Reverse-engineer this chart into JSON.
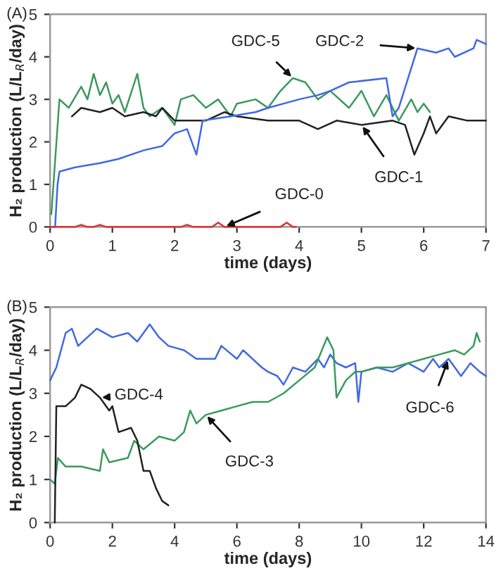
{
  "chart_data": [
    {
      "type": "line",
      "title": "(A)",
      "xlabel": "time (days)",
      "ylabel": "H₂ production (L/L$_{R}$/day)",
      "xlim": [
        0,
        7
      ],
      "xticks": [
        0,
        1,
        2,
        3,
        4,
        5,
        6,
        7
      ],
      "ylim": [
        0,
        5
      ],
      "yticks": [
        0,
        1,
        2,
        3,
        4,
        5
      ],
      "grid": false,
      "legend": false,
      "marker": "none",
      "line_style": "solid",
      "series": [
        {
          "name": "GDC-5",
          "color": "#3a9a5c",
          "x": [
            0.02,
            0.15,
            0.3,
            0.5,
            0.6,
            0.7,
            0.8,
            0.9,
            1.0,
            1.1,
            1.2,
            1.4,
            1.5,
            1.6,
            1.8,
            2.0,
            2.1,
            2.3,
            2.5,
            2.7,
            2.9,
            3.0,
            3.3,
            3.5,
            3.7,
            3.9,
            4.1,
            4.3,
            4.5,
            4.8,
            5.0,
            5.2,
            5.4,
            5.6,
            5.8,
            5.9,
            6.0,
            6.1
          ],
          "values": [
            0.3,
            3.0,
            2.8,
            3.3,
            3.0,
            3.6,
            3.1,
            3.4,
            2.9,
            3.1,
            2.7,
            3.6,
            2.8,
            2.6,
            2.8,
            2.4,
            3.0,
            3.1,
            2.8,
            3.0,
            2.6,
            2.9,
            3.0,
            2.8,
            3.2,
            3.5,
            3.4,
            3.0,
            3.2,
            2.8,
            3.2,
            2.6,
            3.1,
            2.5,
            3.0,
            2.7,
            2.9,
            2.7
          ]
        },
        {
          "name": "GDC-1",
          "color": "#222222",
          "x": [
            0.35,
            0.5,
            0.8,
            1.0,
            1.2,
            1.5,
            1.7,
            1.8,
            2.0,
            2.5,
            2.8,
            3.0,
            3.5,
            4.0,
            4.3,
            4.6,
            5.0,
            5.5,
            5.7,
            5.85,
            6.0,
            6.1,
            6.2,
            6.4,
            6.7,
            7.0
          ],
          "values": [
            2.6,
            2.8,
            2.7,
            2.8,
            2.6,
            2.7,
            2.6,
            2.8,
            2.5,
            2.5,
            2.7,
            2.6,
            2.5,
            2.5,
            2.3,
            2.5,
            2.4,
            2.5,
            2.4,
            1.7,
            2.2,
            2.6,
            2.2,
            2.6,
            2.5,
            2.5
          ]
        },
        {
          "name": "GDC-2",
          "color": "#4169e1",
          "x": [
            0.0,
            0.08,
            0.12,
            0.15,
            0.4,
            0.8,
            1.1,
            1.5,
            1.8,
            2.0,
            2.2,
            2.35,
            2.45,
            2.9,
            3.3,
            3.5,
            4.0,
            4.3,
            4.5,
            4.8,
            5.4,
            5.5,
            5.6,
            5.75,
            5.9,
            6.2,
            6.4,
            6.5,
            6.8,
            6.85,
            7.0
          ],
          "values": [
            0,
            0,
            1.0,
            1.3,
            1.4,
            1.5,
            1.6,
            1.8,
            1.9,
            2.2,
            2.3,
            1.7,
            2.5,
            2.6,
            2.7,
            2.8,
            3.0,
            3.1,
            3.2,
            3.4,
            3.5,
            2.6,
            2.8,
            3.5,
            4.2,
            4.1,
            4.2,
            4.0,
            4.2,
            4.4,
            4.3
          ]
        },
        {
          "name": "GDC-0",
          "color": "#e03030",
          "x": [
            0.0,
            0.4,
            0.5,
            0.6,
            0.7,
            0.8,
            0.9,
            2.1,
            2.2,
            2.3,
            2.6,
            2.7,
            2.8,
            3.7,
            3.8,
            3.9,
            3.95
          ],
          "values": [
            0,
            0,
            0.05,
            0,
            0,
            0.05,
            0,
            0,
            0.05,
            0,
            0,
            0.1,
            0,
            0,
            0.1,
            0,
            0
          ]
        }
      ]
    },
    {
      "type": "line",
      "title": "(B)",
      "xlabel": "time (days)",
      "ylabel": "H₂ production (L/L$_{R}$/day)",
      "xlim": [
        0,
        14
      ],
      "xticks": [
        0,
        2,
        4,
        6,
        8,
        10,
        12,
        14
      ],
      "ylim": [
        0,
        5
      ],
      "yticks": [
        0,
        1,
        2,
        3,
        4,
        5
      ],
      "grid": false,
      "legend": false,
      "marker": "none",
      "line_style": "solid",
      "series": [
        {
          "name": "GDC-6",
          "color": "#4169e1",
          "x": [
            0,
            0.2,
            0.5,
            0.7,
            0.9,
            1.2,
            1.5,
            2.0,
            2.5,
            2.8,
            3.2,
            3.5,
            3.8,
            4.3,
            4.7,
            5.3,
            5.5,
            6.0,
            6.2,
            6.8,
            7.0,
            7.3,
            7.5,
            7.8,
            8.2,
            8.6,
            8.8,
            9.0,
            9.2,
            9.5,
            9.8,
            9.9,
            10.0,
            10.5,
            11.0,
            11.5,
            12.0,
            12.3,
            12.5,
            12.8,
            13.2,
            13.5,
            13.8,
            14.0
          ],
          "values": [
            3.3,
            3.6,
            4.4,
            4.5,
            4.1,
            4.3,
            4.5,
            4.3,
            4.4,
            4.2,
            4.6,
            4.3,
            4.1,
            4.0,
            3.8,
            3.8,
            4.1,
            3.8,
            4.0,
            3.6,
            3.5,
            3.4,
            3.2,
            3.6,
            3.5,
            3.8,
            3.6,
            3.9,
            3.7,
            3.6,
            3.7,
            2.8,
            3.5,
            3.6,
            3.5,
            3.7,
            3.5,
            3.8,
            3.6,
            3.8,
            3.4,
            3.7,
            3.5,
            3.4
          ]
        },
        {
          "name": "GDC-3",
          "color": "#3a9a5c",
          "x": [
            0,
            0.15,
            0.25,
            0.5,
            1.0,
            1.6,
            1.7,
            1.9,
            2.5,
            2.7,
            3.0,
            3.5,
            4.0,
            4.3,
            4.5,
            4.7,
            5.0,
            5.5,
            6.0,
            6.5,
            7.0,
            7.5,
            8.0,
            8.5,
            8.9,
            9.1,
            9.2,
            9.5,
            9.8,
            10.0,
            10.5,
            11.0,
            11.5,
            12.0,
            12.5,
            13.0,
            13.3,
            13.6,
            13.7,
            13.8
          ],
          "values": [
            1.0,
            0.9,
            1.5,
            1.3,
            1.3,
            1.2,
            1.7,
            1.4,
            1.5,
            1.9,
            1.7,
            2.0,
            1.9,
            2.1,
            2.6,
            2.3,
            2.5,
            2.6,
            2.7,
            2.8,
            2.8,
            3.0,
            3.3,
            3.6,
            4.3,
            4.0,
            2.9,
            3.3,
            3.5,
            3.5,
            3.6,
            3.6,
            3.7,
            3.8,
            3.9,
            4.0,
            3.9,
            4.1,
            4.4,
            4.2
          ]
        },
        {
          "name": "GDC-4",
          "color": "#222222",
          "x": [
            0.15,
            0.2,
            0.5,
            0.8,
            1.0,
            1.3,
            1.6,
            1.9,
            2.0,
            2.2,
            2.6,
            2.8,
            3.0,
            3.2,
            3.4,
            3.6,
            3.8
          ],
          "values": [
            0,
            2.7,
            2.7,
            2.9,
            3.2,
            3.1,
            2.9,
            2.6,
            2.7,
            2.1,
            2.2,
            1.9,
            1.2,
            1.2,
            0.8,
            0.5,
            0.4
          ]
        }
      ]
    }
  ]
}
